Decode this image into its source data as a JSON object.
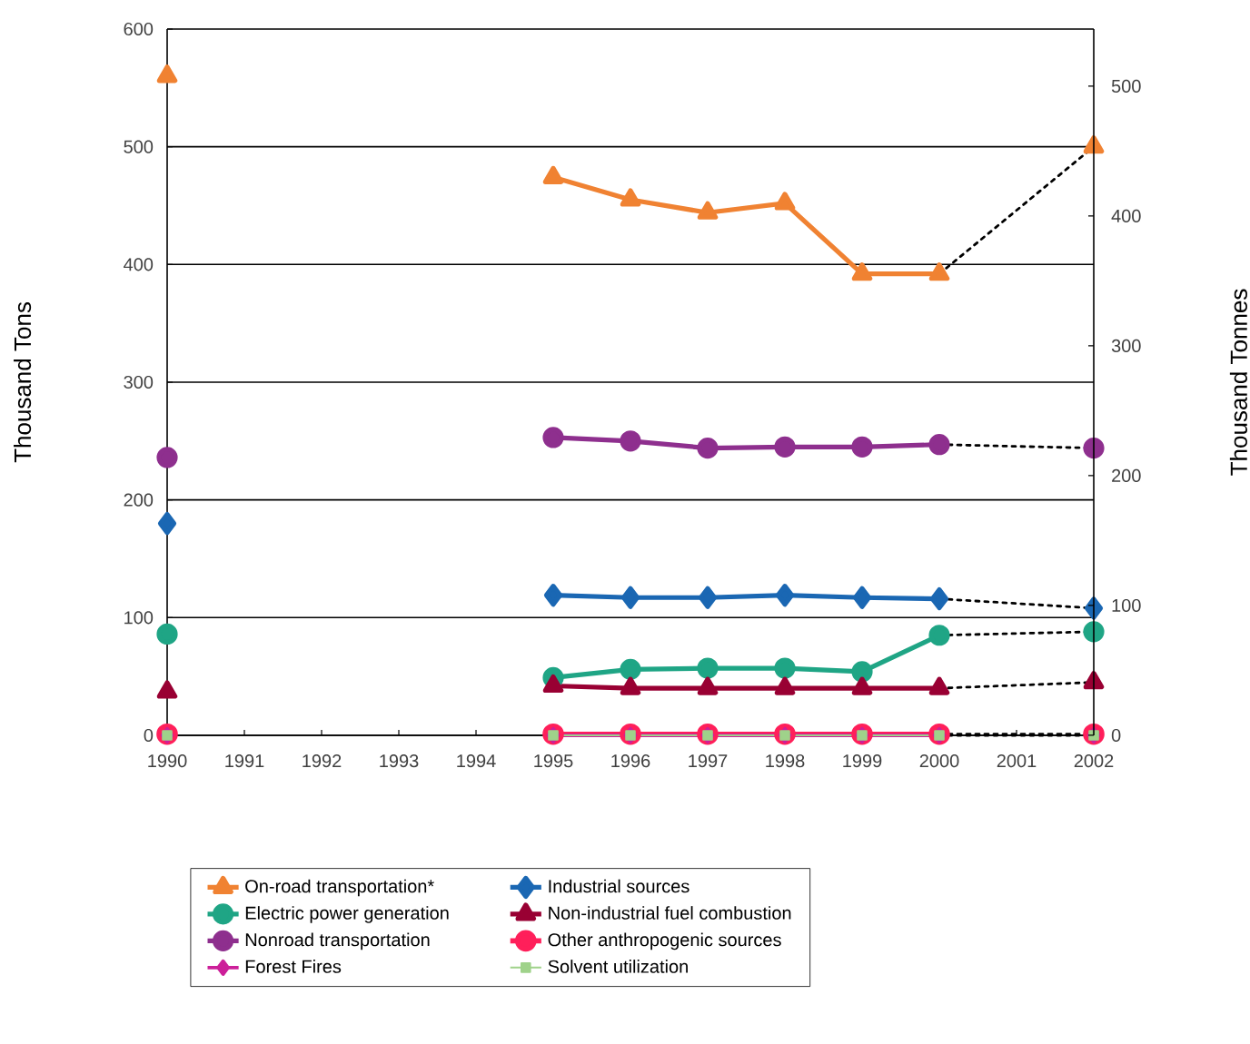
{
  "chart_data": {
    "type": "line",
    "xlabel": null,
    "ylabel": "Thousand Tons",
    "y2label": "Thousand Tonnes",
    "x": [
      1990,
      1991,
      1992,
      1993,
      1994,
      1995,
      1996,
      1997,
      1998,
      1999,
      2000,
      2001,
      2002
    ],
    "xlim": [
      1990,
      2002
    ],
    "xticks": [
      1990,
      1991,
      1992,
      1993,
      1994,
      1995,
      1996,
      1997,
      1998,
      1999,
      2000,
      2001,
      2002
    ],
    "ylim": [
      0,
      600
    ],
    "yticks": [
      0,
      100,
      200,
      300,
      400,
      500,
      600
    ],
    "y2lim": [
      0,
      544
    ],
    "y2ticks": [
      0,
      100,
      200,
      300,
      400,
      500
    ],
    "grid": "y",
    "legend": "bottom",
    "series": [
      {
        "name": "On-road transportation*",
        "color": "#f08232",
        "marker": "triangle",
        "values": [
          560,
          null,
          null,
          null,
          null,
          474,
          455,
          444,
          452,
          392,
          392,
          null,
          500
        ]
      },
      {
        "name": "Industrial sources",
        "color": "#1a67b3",
        "marker": "diamond",
        "values": [
          180,
          null,
          null,
          null,
          null,
          119,
          117,
          117,
          119,
          117,
          116,
          null,
          108
        ]
      },
      {
        "name": "Electric power generation",
        "color": "#1fa585",
        "marker": "circle",
        "values": [
          86,
          null,
          null,
          null,
          null,
          49,
          56,
          57,
          57,
          54,
          85,
          null,
          88
        ]
      },
      {
        "name": "Non-industrial fuel combustion",
        "color": "#990033",
        "marker": "triangle",
        "values": [
          37,
          null,
          null,
          null,
          null,
          42,
          40,
          40,
          40,
          40,
          40,
          null,
          45
        ]
      },
      {
        "name": "Nonroad transportation",
        "color": "#8e2f8e",
        "marker": "circle",
        "values": [
          236,
          null,
          null,
          null,
          null,
          253,
          250,
          244,
          245,
          245,
          247,
          null,
          244
        ]
      },
      {
        "name": "Other anthropogenic sources",
        "color": "#ff1f5a",
        "marker": "circle",
        "values": [
          1,
          null,
          null,
          null,
          null,
          1,
          1,
          1,
          1,
          1,
          1,
          null,
          1
        ]
      },
      {
        "name": "Forest Fires",
        "color": "#cc1f99",
        "marker": "diamond",
        "values": [
          0,
          null,
          null,
          null,
          null,
          0,
          0,
          0,
          0,
          0,
          0,
          null,
          0
        ]
      },
      {
        "name": "Solvent utilization",
        "color": "#9fd28a",
        "marker": "square",
        "values": [
          0,
          null,
          null,
          null,
          null,
          0,
          0,
          0,
          0,
          0,
          0,
          null,
          0
        ]
      },
      {
        "color": "#000000",
        "line_style": "dotted",
        "marker": "none",
        "values": [
          null,
          null,
          null,
          null,
          null,
          null,
          null,
          null,
          null,
          null,
          392,
          null,
          500
        ]
      },
      {
        "color": "#000000",
        "line_style": "dotted",
        "marker": "none",
        "values": [
          null,
          null,
          null,
          null,
          null,
          null,
          null,
          null,
          null,
          null,
          116,
          null,
          108
        ]
      },
      {
        "color": "#000000",
        "line_style": "dotted",
        "marker": "none",
        "values": [
          null,
          null,
          null,
          null,
          null,
          null,
          null,
          null,
          null,
          null,
          85,
          null,
          88
        ]
      },
      {
        "color": "#000000",
        "line_style": "dotted",
        "marker": "none",
        "values": [
          null,
          null,
          null,
          null,
          null,
          null,
          null,
          null,
          null,
          null,
          40,
          null,
          45
        ]
      },
      {
        "color": "#000000",
        "line_style": "dotted",
        "marker": "none",
        "values": [
          null,
          null,
          null,
          null,
          null,
          null,
          null,
          null,
          null,
          null,
          247,
          null,
          244
        ]
      },
      {
        "color": "#000000",
        "line_style": "dotted",
        "marker": "none",
        "values": [
          null,
          null,
          null,
          null,
          null,
          null,
          null,
          null,
          null,
          null,
          1,
          null,
          1
        ]
      },
      {
        "color": "#000000",
        "line_style": "dotted",
        "marker": "none",
        "values": [
          null,
          null,
          null,
          null,
          null,
          null,
          null,
          null,
          null,
          null,
          0,
          null,
          0
        ]
      }
    ]
  }
}
